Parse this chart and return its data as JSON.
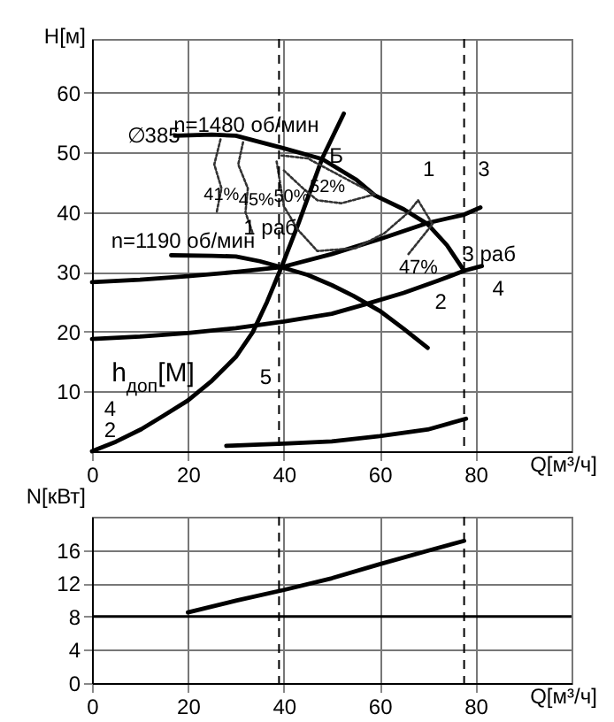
{
  "chart_data": [
    {
      "type": "line",
      "ylabel": "Н[м]",
      "xlabel": "Q[м³/ч]",
      "y2label": "h$_{доп}$[М]",
      "xlim": [
        0,
        100
      ],
      "ylim": [
        0,
        69
      ],
      "y2lim": [
        0,
        38
      ],
      "xticks": [
        0,
        20,
        40,
        60,
        80
      ],
      "yticks": [
        10,
        20,
        30,
        40,
        50,
        60
      ],
      "y2ticks": [
        2,
        4
      ],
      "grid": true,
      "series": [
        {
          "color": "#000000",
          "x": [
            17.3,
            25,
            30,
            40,
            48,
            55,
            59,
            65,
            70,
            74,
            77.6
          ],
          "values": [
            52.8,
            53,
            52.8,
            50.7,
            48.9,
            45.5,
            42.8,
            40.5,
            38,
            34.5,
            30.2
          ]
        },
        {
          "color": "#000000",
          "x": [
            16.5,
            25,
            30,
            35,
            39.5,
            45,
            50,
            54.5,
            60,
            65,
            70
          ],
          "values": [
            32.8,
            32.7,
            32.6,
            31.8,
            30.8,
            29.5,
            27.8,
            26,
            23.5,
            20.5,
            17.3
          ]
        },
        {
          "color": "#000000",
          "x": [
            0,
            10,
            20,
            30,
            39.5,
            50,
            60,
            70,
            77.6,
            81
          ],
          "values": [
            28.3,
            28.7,
            29.3,
            30,
            30.8,
            33,
            35.5,
            38.2,
            39.6,
            40.8
          ]
        },
        {
          "color": "#000000",
          "x": [
            0,
            10,
            20,
            30,
            40,
            50,
            57,
            65,
            72,
            77.6,
            81.3
          ],
          "values": [
            18.8,
            19.2,
            19.8,
            20.6,
            21.7,
            23,
            24.6,
            26.5,
            28.5,
            30.2,
            31
          ]
        },
        {
          "color": "#000000",
          "x": [
            0,
            5,
            10.3,
            15,
            20,
            25,
            30,
            33.5,
            36.5,
            39.5,
            43,
            48,
            52.5
          ],
          "values": [
            0,
            1.6,
            3.7,
            6,
            8.5,
            11.8,
            15.8,
            19.9,
            25,
            30.8,
            38,
            49,
            56.5
          ]
        },
        {
          "color": "#000000",
          "axis": "y2",
          "x": [
            28,
            40,
            50,
            60,
            70,
            78
          ],
          "values": [
            0.5,
            0.7,
            0.9,
            1.4,
            2,
            3
          ]
        },
        {
          "color": "#333333",
          "line_style": "dotted",
          "x": [
            26.8,
            25.5,
            27,
            26
          ],
          "values": [
            52.2,
            48,
            44,
            40
          ]
        },
        {
          "color": "#333333",
          "line_style": "dotted",
          "x": [
            31.5,
            30.5,
            32.5,
            32,
            33.5
          ],
          "values": [
            51.7,
            48,
            44,
            40,
            36.5
          ]
        },
        {
          "color": "#333333",
          "line_style": "dotted",
          "x": [
            39.5,
            45,
            52,
            59
          ],
          "values": [
            49.5,
            49,
            46,
            43
          ]
        },
        {
          "color": "#333333",
          "line_style": "dotted",
          "x": [
            40,
            44,
            47,
            52,
            59
          ],
          "values": [
            47,
            44,
            42,
            41.5,
            43
          ]
        },
        {
          "color": "#333333",
          "line_style": "dotted",
          "x": [
            38.5,
            40,
            43,
            47,
            55,
            61,
            66,
            68,
            71
          ],
          "values": [
            48.5,
            41,
            37,
            33.5,
            34,
            36.5,
            40,
            42,
            38
          ]
        },
        {
          "color": "#333333",
          "line_style": "dotted",
          "x": [
            66,
            71
          ],
          "values": [
            33,
            38
          ]
        }
      ],
      "ref_lines": [
        {
          "axis": "x",
          "value": 39,
          "line_style": "dashed"
        },
        {
          "axis": "x",
          "value": 77.6,
          "line_style": "dashed"
        }
      ],
      "annotations": [
        "n=1480 об/мин",
        "∅385",
        "Б",
        "1",
        "3",
        "41%",
        "45%",
        "50%",
        "52%",
        "47%",
        "n=1190 об/мин",
        "1 раб",
        "3 раб",
        "4",
        "2",
        "5"
      ]
    },
    {
      "type": "line",
      "ylabel": "N[кВт]",
      "xlabel": "Q[м³/ч]",
      "xlim": [
        0,
        100
      ],
      "ylim": [
        0,
        20
      ],
      "xticks": [
        0,
        20,
        40,
        60,
        80
      ],
      "yticks": [
        0,
        4,
        8,
        12,
        16
      ],
      "grid": true,
      "series": [
        {
          "color": "#000000",
          "x": [
            20,
            30,
            40,
            50,
            60,
            70,
            77.6
          ],
          "values": [
            8.5,
            9.9,
            11.2,
            12.6,
            14.3,
            15.9,
            17.1
          ]
        }
      ],
      "ref_lines": [
        {
          "axis": "x",
          "value": 39,
          "line_style": "dashed"
        },
        {
          "axis": "x",
          "value": 77.6,
          "line_style": "dashed"
        },
        {
          "axis": "y",
          "value": 8,
          "line_style": "solid"
        }
      ]
    }
  ]
}
